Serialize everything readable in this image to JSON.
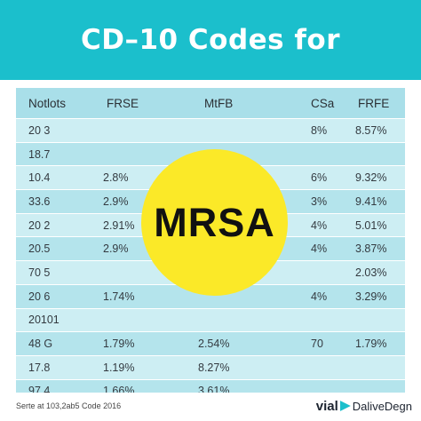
{
  "header": {
    "title": "CD–10 Codes for"
  },
  "badge": {
    "text": "MRSA"
  },
  "table": {
    "columns": [
      "Notlots",
      "FRSE",
      "MtFB",
      "CSa",
      "FRFE"
    ],
    "rows": [
      [
        "20 3",
        "",
        "",
        "8%",
        "8.57%"
      ],
      [
        "18.7",
        "",
        "",
        "",
        ""
      ],
      [
        "10.4",
        "2.8%",
        "",
        "6%",
        "9.32%"
      ],
      [
        "33.6",
        "2.9%",
        "",
        "3%",
        "9.41%"
      ],
      [
        "20 2",
        "2.91%",
        "",
        "4%",
        "5.01%"
      ],
      [
        "20.5",
        "2.9%",
        "",
        "4%",
        "3.87%"
      ],
      [
        "70 5",
        "",
        "",
        "",
        "2.03%"
      ],
      [
        "20 6",
        "1.74%",
        "",
        "4%",
        "3.29%"
      ],
      [
        "20101",
        "",
        "",
        "",
        ""
      ],
      [
        "48 G",
        "1.79%",
        "2.54%",
        "70",
        "1.79%"
      ],
      [
        "17.8",
        "1.19%",
        "8.27%",
        "",
        ""
      ],
      [
        "97.4",
        "1.66%",
        "3.61%",
        "",
        ""
      ]
    ]
  },
  "footer": {
    "source": "Serte at 103,2ab5 Code 2016",
    "brand_bold": "vial",
    "brand_rest": "DaliveDegn"
  },
  "colors": {
    "header": "#1bbfcc",
    "badge": "#fbe928",
    "row_light": "#cdeef3",
    "row_dark": "#b4e4ec"
  }
}
